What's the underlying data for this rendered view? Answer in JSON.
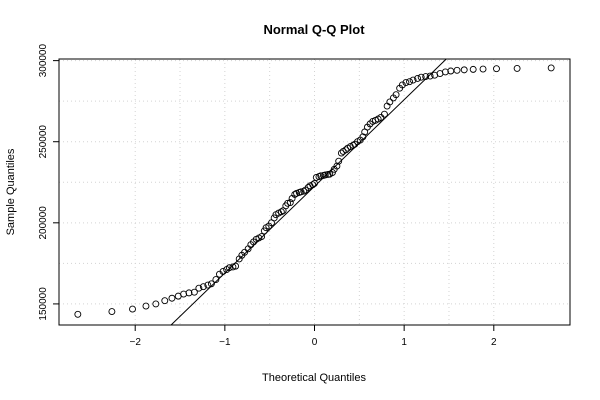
{
  "chart_data": {
    "type": "scatter",
    "title": "Normal Q-Q Plot",
    "xlabel": "Theoretical Quantiles",
    "ylabel": "Sample Quantiles",
    "xlim": [
      -2.85,
      2.85
    ],
    "ylim": [
      137000,
      301000
    ],
    "x_ticks": [
      -2,
      -1,
      0,
      1,
      2
    ],
    "x_tick_labels": [
      "−2",
      "−1",
      "0",
      "1",
      "2"
    ],
    "y_ticks": [
      150000,
      200000,
      250000,
      300000
    ],
    "y_tick_labels": [
      "150000",
      "200000",
      "250000",
      "300000"
    ],
    "grid": true,
    "reference_line": {
      "from": [
        -1.6,
        137000
      ],
      "to": [
        1.47,
        301000
      ]
    },
    "points": {
      "x": [
        -2.64,
        -2.26,
        -2.03,
        -1.88,
        -1.77,
        -1.67,
        -1.59,
        -1.52,
        -1.46,
        -1.4,
        -1.34,
        -1.29,
        -1.24,
        -1.19,
        -1.15,
        -1.1,
        -1.06,
        -1.02,
        -0.98,
        -0.95,
        -0.91,
        -0.88,
        -0.84,
        -0.81,
        -0.78,
        -0.74,
        -0.71,
        -0.68,
        -0.65,
        -0.62,
        -0.59,
        -0.56,
        -0.54,
        -0.51,
        -0.48,
        -0.45,
        -0.43,
        -0.4,
        -0.37,
        -0.35,
        -0.32,
        -0.3,
        -0.27,
        -0.25,
        -0.22,
        -0.2,
        -0.17,
        -0.15,
        -0.12,
        -0.1,
        -0.07,
        -0.05,
        -0.02,
        0.0,
        0.02,
        0.05,
        0.07,
        0.1,
        0.12,
        0.15,
        0.17,
        0.2,
        0.22,
        0.25,
        0.27,
        0.3,
        0.32,
        0.35,
        0.37,
        0.4,
        0.43,
        0.45,
        0.48,
        0.51,
        0.54,
        0.56,
        0.59,
        0.62,
        0.65,
        0.68,
        0.71,
        0.74,
        0.78,
        0.81,
        0.84,
        0.88,
        0.91,
        0.95,
        0.98,
        1.02,
        1.06,
        1.1,
        1.15,
        1.19,
        1.24,
        1.29,
        1.34,
        1.4,
        1.46,
        1.52,
        1.59,
        1.67,
        1.77,
        1.88,
        2.03,
        2.26,
        2.64
      ],
      "y": [
        143600,
        145300,
        146800,
        148700,
        150000,
        152000,
        153500,
        154800,
        156100,
        156800,
        157200,
        159700,
        160600,
        161600,
        162400,
        165000,
        168300,
        170000,
        171200,
        172300,
        172800,
        173300,
        177700,
        180000,
        181800,
        184000,
        186500,
        188200,
        189800,
        190700,
        191500,
        195000,
        197000,
        198000,
        200000,
        203000,
        205000,
        206000,
        206800,
        207500,
        210500,
        212000,
        212500,
        215000,
        217500,
        218200,
        218700,
        219100,
        219500,
        220200,
        221800,
        222800,
        223500,
        224300,
        228000,
        228500,
        229000,
        229200,
        229500,
        229800,
        230000,
        231000,
        233000,
        235000,
        238000,
        243000,
        244000,
        245000,
        246000,
        247000,
        247800,
        248500,
        250000,
        251000,
        253000,
        256000,
        259000,
        261000,
        262500,
        263200,
        264000,
        265000,
        267000,
        272000,
        274500,
        277000,
        279000,
        283000,
        285000,
        286500,
        287000,
        288000,
        289000,
        289800,
        290200,
        290500,
        291000,
        292000,
        293000,
        293600,
        294000,
        294300,
        294600,
        294800,
        295000,
        295200,
        295500
      ]
    }
  }
}
